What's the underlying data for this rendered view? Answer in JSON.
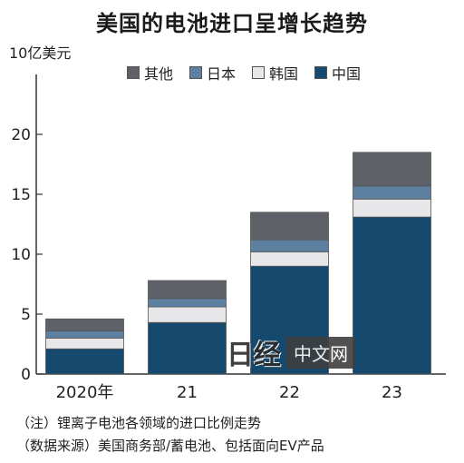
{
  "title": "美国的电池进口呈增长趋势",
  "unit": "10亿美元",
  "legend": {
    "other": "其他",
    "japan": "日本",
    "korea": "韩国",
    "china": "中国"
  },
  "colors": {
    "other": "#5f6168",
    "japan": "#5d80a0",
    "korea": "#e7e7e9",
    "china": "#15496e"
  },
  "notes": {
    "note": "（注）锂离子电池各领域的进口比例走势",
    "source": "（数据来源）美国商务部/蓄电池、包括面向EV产品"
  },
  "watermark": {
    "logo": "日经",
    "text": "中文网"
  },
  "chart_data": {
    "type": "bar",
    "stacked": true,
    "categories": [
      "2020年",
      "21",
      "22",
      "23"
    ],
    "series": [
      {
        "name": "中国",
        "values": [
          2.1,
          4.3,
          9.0,
          13.1
        ]
      },
      {
        "name": "韩国",
        "values": [
          0.9,
          1.3,
          1.2,
          1.5
        ]
      },
      {
        "name": "日本",
        "values": [
          0.6,
          0.7,
          1.0,
          1.1
        ]
      },
      {
        "name": "其他",
        "values": [
          1.0,
          1.5,
          2.3,
          2.8
        ]
      }
    ],
    "ylabel": "10亿美元",
    "yticks": [
      0,
      5,
      10,
      15,
      20
    ],
    "ylim": [
      0,
      25
    ],
    "legend_position": "top"
  }
}
